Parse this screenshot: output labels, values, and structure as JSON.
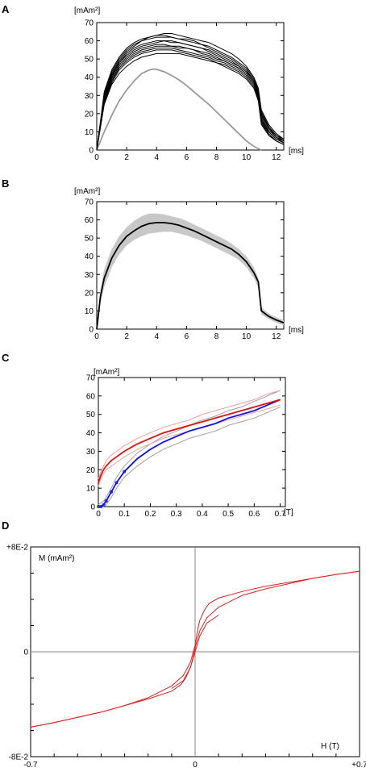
{
  "chart_data": [
    {
      "panel": "A",
      "type": "line",
      "ylabel": "[mAm²]",
      "xlabel": "[ms]",
      "xlim": [
        0,
        12.5
      ],
      "ylim": [
        0,
        70
      ],
      "xticks": [
        "0",
        "2",
        "4",
        "6",
        "8",
        "10",
        "12"
      ],
      "yticks": [
        "0",
        "10",
        "20",
        "30",
        "40",
        "50",
        "60",
        "70"
      ],
      "grid": false,
      "legend": "none",
      "colors": {
        "trials": "#000000",
        "model": "#999999"
      },
      "x": [
        0,
        0.5,
        1,
        1.5,
        2,
        2.5,
        3,
        3.5,
        4,
        4.5,
        5,
        5.5,
        6,
        6.5,
        7,
        7.5,
        8,
        8.5,
        9,
        9.5,
        10,
        10.5,
        10.8,
        11,
        11.5,
        12,
        12.5
      ],
      "series": [
        {
          "values": [
            0,
            32,
            44,
            51,
            56,
            59,
            61,
            62,
            63,
            64,
            64,
            63,
            62,
            61,
            60,
            59,
            57,
            55,
            53,
            50,
            46,
            40,
            34,
            22,
            14,
            9,
            6
          ]
        },
        {
          "values": [
            0,
            30,
            42,
            49,
            54,
            57,
            60,
            62,
            63,
            63,
            62,
            61,
            60,
            59,
            58,
            56,
            54,
            52,
            50,
            47,
            44,
            38,
            32,
            20,
            12,
            8,
            5
          ]
        },
        {
          "values": [
            0,
            29,
            41,
            48,
            52,
            55,
            57,
            58,
            59,
            60,
            60,
            59,
            58,
            57,
            56,
            55,
            53,
            51,
            49,
            46,
            43,
            38,
            31,
            18,
            11,
            7,
            4
          ]
        },
        {
          "values": [
            0,
            28,
            40,
            47,
            51,
            54,
            56,
            57,
            58,
            58,
            57,
            57,
            56,
            55,
            54,
            53,
            51,
            49,
            47,
            45,
            42,
            37,
            30,
            17,
            10,
            6,
            4
          ]
        },
        {
          "values": [
            0,
            27,
            38,
            45,
            49,
            52,
            54,
            55,
            56,
            56,
            56,
            55,
            54,
            53,
            52,
            51,
            49,
            48,
            46,
            44,
            41,
            36,
            29,
            16,
            9,
            5,
            3
          ]
        },
        {
          "values": [
            0,
            26,
            37,
            44,
            48,
            51,
            53,
            54,
            55,
            55,
            55,
            54,
            53,
            52,
            51,
            50,
            48,
            47,
            45,
            43,
            40,
            35,
            28,
            15,
            8,
            5,
            3
          ]
        },
        {
          "values": [
            0,
            31,
            43,
            50,
            55,
            58,
            60,
            61,
            62,
            62,
            62,
            61,
            61,
            60,
            58,
            57,
            55,
            53,
            51,
            48,
            45,
            39,
            33,
            21,
            13,
            8,
            6
          ]
        },
        {
          "values": [
            0,
            27,
            39,
            46,
            50,
            53,
            55,
            56,
            57,
            57,
            57,
            56,
            56,
            55,
            53,
            52,
            50,
            49,
            47,
            45,
            42,
            37,
            30,
            16,
            10,
            6,
            4
          ]
        },
        {
          "values": [
            0,
            25,
            36,
            42,
            46,
            49,
            51,
            52,
            53,
            53,
            53,
            53,
            52,
            51,
            50,
            49,
            48,
            46,
            44,
            42,
            39,
            34,
            27,
            14,
            8,
            5,
            3
          ]
        },
        {
          "values": [
            0,
            30,
            41,
            48,
            53,
            56,
            58,
            59,
            60,
            60,
            59,
            59,
            58,
            57,
            56,
            54,
            52,
            50,
            48,
            46,
            43,
            38,
            31,
            19,
            12,
            7,
            5
          ]
        }
      ],
      "model_curve": {
        "x": [
          0,
          0.5,
          1,
          1.5,
          2,
          2.5,
          3,
          3.5,
          3.8,
          4,
          4.5,
          5,
          5.5,
          6,
          6.5,
          7,
          7.5,
          8,
          8.5,
          9,
          9.5,
          10,
          10.5,
          11
        ],
        "values": [
          0,
          10,
          19,
          27,
          33,
          38,
          42,
          44,
          44.5,
          44.3,
          43,
          41,
          38.5,
          35.5,
          32,
          28.5,
          25,
          21,
          17,
          13,
          9,
          5,
          2,
          0
        ]
      }
    },
    {
      "panel": "B",
      "type": "area",
      "ylabel": "[mAm²]",
      "xlabel": "[ms]",
      "xlim": [
        0,
        12.5
      ],
      "ylim": [
        0,
        70
      ],
      "xticks": [
        "0",
        "2",
        "4",
        "6",
        "8",
        "10",
        "12"
      ],
      "yticks": [
        "0",
        "10",
        "20",
        "30",
        "40",
        "50",
        "60",
        "70"
      ],
      "grid": false,
      "legend": "none",
      "colors": {
        "mean": "#000000",
        "band": "#c8c8c8"
      },
      "x": [
        0,
        0.25,
        0.5,
        1,
        1.5,
        2,
        2.5,
        3,
        3.5,
        4,
        4.5,
        5,
        5.5,
        6,
        6.5,
        7,
        7.5,
        8,
        8.5,
        9,
        9.5,
        10,
        10.5,
        10.8,
        11,
        11.5,
        12,
        12.5
      ],
      "mean": [
        0,
        18,
        28,
        39,
        46,
        51,
        54,
        56.5,
        58,
        58.5,
        58.5,
        58,
        57,
        55.5,
        54,
        52,
        50,
        48,
        46,
        44,
        41,
        37,
        31,
        26,
        10,
        7,
        5,
        3.5
      ],
      "band_upper": [
        0,
        22,
        33,
        44,
        51,
        56,
        59.5,
        62,
        63.5,
        63.5,
        63,
        62,
        61,
        59.5,
        57.5,
        55.5,
        53.5,
        51.5,
        49.5,
        47,
        44,
        40,
        34,
        28,
        12,
        8.5,
        6.5,
        5
      ],
      "band_lower": [
        0,
        14,
        23,
        34,
        41,
        46,
        49,
        51,
        52.5,
        53,
        53.5,
        53.5,
        52.5,
        51.5,
        50,
        48.5,
        46.5,
        44.5,
        42.5,
        40.5,
        38,
        34,
        28,
        23,
        8,
        5.5,
        3.5,
        2
      ]
    },
    {
      "panel": "C",
      "type": "line",
      "ylabel": "[mAm²]",
      "xlabel": "[T]",
      "xlim": [
        0,
        0.72
      ],
      "ylim": [
        0,
        70
      ],
      "xticks": [
        "0",
        "0.1",
        "0.2",
        "0.3",
        "0.4",
        "0.5",
        "0.6",
        "0.7"
      ],
      "yticks": [
        "0",
        "10",
        "20",
        "30",
        "40",
        "50",
        "60",
        "70"
      ],
      "grid": false,
      "legend": "none",
      "colors": {
        "red": "#e01010",
        "red_band": "#f0a0a0",
        "blue": "#1010e0",
        "blue_band": "#a0a0a0",
        "blue_marks": "#1010e0"
      },
      "x": [
        0,
        0.01,
        0.02,
        0.03,
        0.05,
        0.07,
        0.1,
        0.15,
        0.2,
        0.25,
        0.3,
        0.35,
        0.4,
        0.45,
        0.5,
        0.55,
        0.6,
        0.65,
        0.7
      ],
      "series": [
        {
          "values": [
            13,
            17,
            20,
            22,
            25,
            27,
            30,
            34,
            37,
            40,
            42,
            44,
            46,
            48,
            50,
            52,
            54,
            56,
            58
          ]
        },
        {
          "values": [
            0,
            0,
            1,
            3,
            8,
            13,
            19,
            26,
            31,
            35,
            38,
            41,
            43,
            45,
            48,
            50,
            52,
            55,
            58
          ]
        }
      ],
      "red_upper": [
        15,
        19,
        22,
        25,
        28,
        30,
        33,
        37,
        40,
        43,
        45,
        47,
        50,
        52,
        54,
        56,
        58,
        61,
        63
      ],
      "red_lower": [
        11,
        15,
        18,
        20,
        22,
        24,
        27,
        31,
        34,
        37,
        39,
        41,
        43,
        45,
        47,
        49,
        51,
        53,
        55
      ],
      "blue_upper": [
        1,
        2,
        3,
        5,
        10,
        16,
        22,
        29,
        34,
        38,
        41,
        44,
        47,
        49,
        52,
        54,
        57,
        60,
        63
      ],
      "blue_lower": [
        0,
        0,
        0,
        1,
        5,
        10,
        16,
        22,
        27,
        31,
        34,
        37,
        39,
        41,
        44,
        46,
        48,
        51,
        54
      ]
    },
    {
      "panel": "D",
      "type": "line",
      "ylabel": "M (mAm²)",
      "xlabel": "H (T)",
      "xlim": [
        -0.7,
        0.7
      ],
      "ylim": [
        -0.08,
        0.08
      ],
      "xticks": [
        "-0.7",
        "0",
        "+0.7"
      ],
      "yticks": [
        "-8E-2",
        "0",
        "+8E-2"
      ],
      "grid": false,
      "legend": "none",
      "colors": {
        "curve": "#e02020",
        "axes": "#888888"
      },
      "upper_branch": {
        "x": [
          -0.7,
          -0.6,
          -0.5,
          -0.4,
          -0.3,
          -0.2,
          -0.1,
          -0.05,
          -0.02,
          0,
          0.01,
          0.02,
          0.04,
          0.06,
          0.1,
          0.2,
          0.3,
          0.4,
          0.5,
          0.6,
          0.7
        ],
        "values": [
          -0.0575,
          -0.054,
          -0.05,
          -0.046,
          -0.041,
          -0.035,
          -0.026,
          -0.018,
          -0.008,
          0.005,
          0.016,
          0.024,
          0.032,
          0.037,
          0.041,
          0.046,
          0.05,
          0.053,
          0.056,
          0.059,
          0.0615
        ]
      },
      "lower_branch": {
        "x": [
          -0.7,
          -0.6,
          -0.5,
          -0.4,
          -0.3,
          -0.2,
          -0.1,
          -0.06,
          -0.04,
          -0.02,
          -0.01,
          0,
          0.02,
          0.05,
          0.1,
          0.2,
          0.3,
          0.4,
          0.5,
          0.6,
          0.7
        ],
        "values": [
          -0.0575,
          -0.054,
          -0.05,
          -0.046,
          -0.041,
          -0.036,
          -0.03,
          -0.025,
          -0.02,
          -0.012,
          -0.005,
          0.003,
          0.016,
          0.026,
          0.034,
          0.043,
          0.048,
          0.052,
          0.056,
          0.059,
          0.0615
        ]
      },
      "inner_branch": {
        "x": [
          -0.1,
          -0.05,
          -0.02,
          0,
          0.02,
          0.05,
          0.1
        ],
        "values": [
          -0.028,
          -0.022,
          -0.012,
          0,
          0.012,
          0.022,
          0.028
        ]
      }
    }
  ]
}
